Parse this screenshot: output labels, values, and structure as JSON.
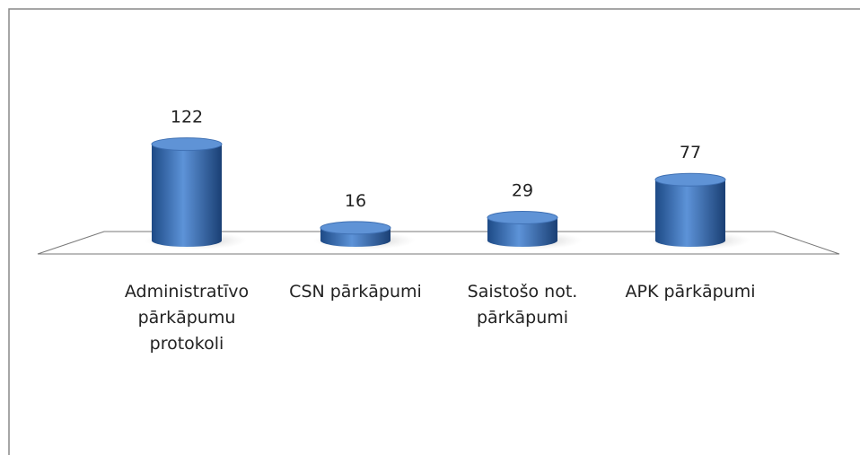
{
  "chart_data": {
    "type": "bar",
    "categories": [
      "Administratīvo pārkāpumu protokoli",
      "CSN pārkāpumi",
      "Saistošo not. pārkāpumi",
      "APK pārkāpumi"
    ],
    "values": [
      122,
      16,
      29,
      77
    ],
    "color": "#3a6db5"
  }
}
